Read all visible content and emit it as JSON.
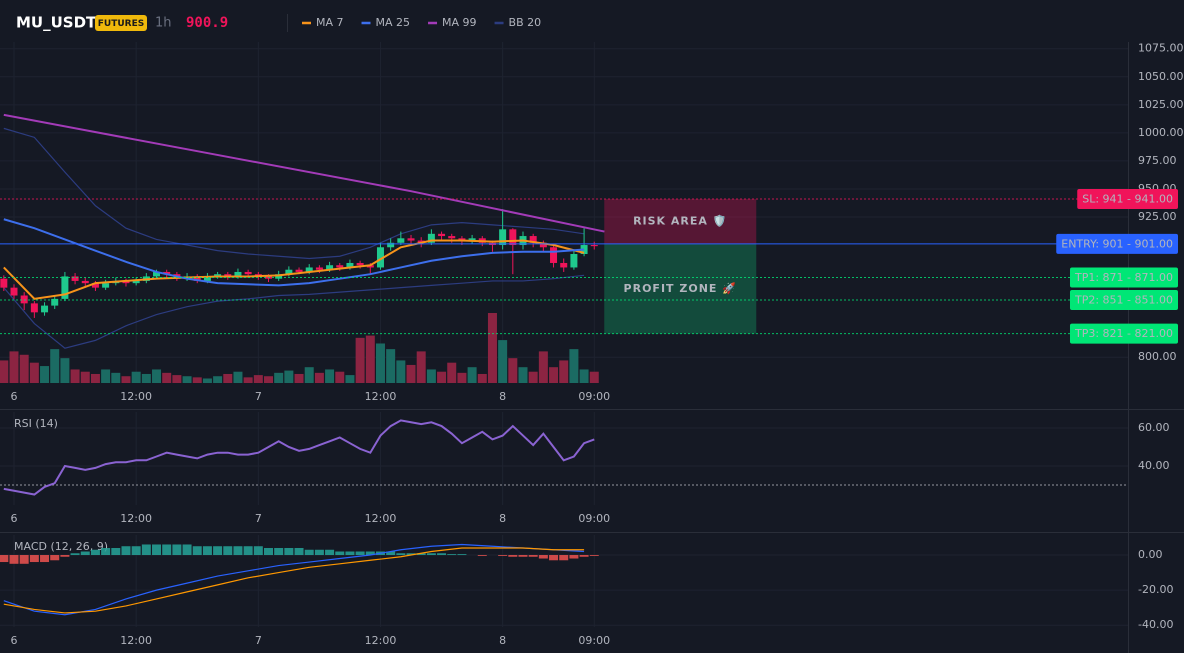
{
  "header": {
    "symbol": "MU_USDT",
    "badge": "FUTURES",
    "interval": "1h",
    "price": 900.9
  },
  "chart_data": [
    {
      "type": "candlestick",
      "x": [
        -1,
        0,
        1,
        2,
        3,
        4,
        5,
        6,
        7,
        8,
        9,
        10,
        11,
        12,
        13,
        14,
        15,
        16,
        17,
        18,
        19,
        20,
        21,
        22,
        23,
        24,
        25,
        26,
        27,
        28,
        29,
        30,
        31,
        32,
        33,
        34,
        35,
        36,
        37,
        38,
        39,
        40,
        41,
        42,
        43,
        44,
        45,
        46,
        47,
        48,
        49,
        50,
        51,
        52,
        53,
        54,
        55,
        56,
        57
      ],
      "open": [
        870,
        862,
        855,
        848,
        840,
        846,
        852,
        872,
        868,
        866,
        862,
        866,
        868,
        866,
        868,
        872,
        876,
        874,
        870,
        872,
        868,
        872,
        874,
        872,
        876,
        874,
        872,
        870,
        874,
        878,
        876,
        880,
        878,
        882,
        880,
        884,
        882,
        880,
        898,
        902,
        906,
        904,
        902,
        910,
        908,
        906,
        904,
        906,
        902,
        900,
        914,
        900,
        908,
        902,
        898,
        884,
        880,
        892,
        900
      ],
      "high": [
        873,
        865,
        858,
        850,
        849,
        855,
        876,
        875,
        871,
        868,
        869,
        871,
        870,
        871,
        875,
        878,
        878,
        876,
        875,
        874,
        875,
        876,
        876,
        879,
        878,
        876,
        874,
        877,
        881,
        880,
        883,
        882,
        885,
        884,
        887,
        886,
        884,
        902,
        906,
        912,
        909,
        907,
        914,
        912,
        910,
        908,
        909,
        908,
        904,
        932,
        915,
        912,
        910,
        904,
        900,
        888,
        896,
        915,
        903
      ],
      "low": [
        859,
        852,
        842,
        835,
        837,
        843,
        850,
        865,
        862,
        859,
        860,
        864,
        863,
        864,
        866,
        870,
        871,
        868,
        868,
        866,
        866,
        870,
        869,
        870,
        871,
        869,
        867,
        868,
        872,
        874,
        874,
        875,
        876,
        877,
        878,
        879,
        874,
        878,
        895,
        900,
        900,
        898,
        900,
        904,
        902,
        900,
        901,
        899,
        894,
        896,
        874,
        896,
        898,
        894,
        880,
        876,
        878,
        890,
        896
      ],
      "close": [
        862,
        855,
        848,
        840,
        846,
        852,
        872,
        868,
        866,
        862,
        866,
        868,
        866,
        868,
        872,
        876,
        874,
        870,
        872,
        868,
        872,
        874,
        872,
        876,
        874,
        872,
        870,
        874,
        878,
        876,
        880,
        878,
        882,
        880,
        884,
        882,
        880,
        898,
        902,
        906,
        904,
        902,
        910,
        908,
        906,
        904,
        906,
        902,
        900,
        914,
        900,
        908,
        902,
        898,
        884,
        880,
        892,
        900,
        899
      ],
      "volume": [
        20,
        28,
        25,
        18,
        15,
        30,
        22,
        12,
        10,
        8,
        12,
        9,
        6,
        10,
        8,
        12,
        9,
        7,
        6,
        5,
        4,
        6,
        8,
        10,
        5,
        7,
        6,
        9,
        11,
        8,
        14,
        9,
        12,
        10,
        7,
        40,
        42,
        35,
        30,
        20,
        16,
        28,
        12,
        10,
        18,
        9,
        14,
        8,
        62,
        38,
        22,
        14,
        10,
        28,
        14,
        20,
        30,
        12,
        10
      ],
      "up_color": "#1fc98d",
      "down_color": "#f0145a",
      "volume_up_color": "#1b6b63",
      "volume_down_color": "#8c2442",
      "lines": [
        {
          "name": "MA 7",
          "color": "#f7931a",
          "x": [
            -1,
            2,
            5,
            8,
            11,
            14,
            17,
            20,
            23,
            26,
            29,
            32,
            35,
            38,
            41,
            44,
            47,
            50,
            53,
            56
          ],
          "values": [
            880,
            852,
            856,
            866,
            868,
            870,
            871,
            872,
            872,
            873,
            876,
            879,
            882,
            898,
            904,
            904,
            903,
            904,
            900,
            893
          ]
        },
        {
          "name": "MA 25",
          "color": "#3d6fec",
          "x": [
            -1,
            2,
            5,
            8,
            11,
            14,
            17,
            20,
            23,
            26,
            29,
            32,
            35,
            38,
            41,
            44,
            47,
            50,
            53,
            56
          ],
          "values": [
            923,
            915,
            905,
            895,
            885,
            876,
            870,
            866,
            865,
            864,
            866,
            870,
            874,
            880,
            886,
            890,
            893,
            894,
            894,
            896
          ]
        },
        {
          "name": "MA 99",
          "color": "#a33bb8",
          "x": [
            -1,
            19,
            39,
            58
          ],
          "values": [
            1016,
            982,
            948,
            912
          ]
        },
        {
          "name": "BB 20",
          "color": "#2c3c80",
          "x": [
            -1,
            2,
            5,
            8,
            11,
            14,
            17,
            20,
            23,
            26,
            29,
            32,
            35,
            38,
            41,
            44,
            47,
            50,
            53,
            56
          ],
          "upper": [
            1004,
            996,
            965,
            935,
            915,
            905,
            900,
            895,
            892,
            890,
            888,
            890,
            898,
            910,
            918,
            920,
            918,
            916,
            914,
            910
          ],
          "lower": [
            862,
            830,
            808,
            815,
            828,
            838,
            845,
            850,
            852,
            855,
            856,
            858,
            860,
            862,
            864,
            866,
            868,
            868,
            870,
            873
          ]
        }
      ],
      "levels": [
        {
          "label": "SL: 941 - 941.00",
          "value": 941,
          "color": "#f0145a",
          "style": "dotted"
        },
        {
          "label": "ENTRY: 901 - 901.00",
          "value": 901,
          "color": "#2962ff",
          "style": "solid"
        },
        {
          "label": "TP1: 871 - 871.00",
          "value": 871,
          "color": "#00e676",
          "style": "dotted"
        },
        {
          "label": "TP2: 851 - 851.00",
          "value": 851,
          "color": "#00e676",
          "style": "dotted"
        },
        {
          "label": "TP3: 821 - 821.00",
          "value": 821,
          "color": "#00e676",
          "style": "dotted"
        }
      ],
      "zones": [
        {
          "label": "RISK AREA 🛡️",
          "from": 941,
          "to": 901,
          "color": "#f0145a",
          "text_color": "#f0145a"
        },
        {
          "label": "PROFIT ZONE 🚀",
          "from": 901,
          "to": 821,
          "color": "#0fbf75",
          "text_color": "#1fe08f"
        }
      ],
      "xlim": [
        -1.375,
        109.43
      ],
      "ylim": [
        777,
        1081
      ],
      "xticks": [
        {
          "value": 0,
          "label": "6"
        },
        {
          "value": 12,
          "label": "12:00"
        },
        {
          "value": 24,
          "label": "7"
        },
        {
          "value": 36,
          "label": "12:00"
        },
        {
          "value": 48,
          "label": "8"
        },
        {
          "value": 57,
          "label": "09:00"
        }
      ],
      "yticks": [
        {
          "value": 1075,
          "label": "1075.00"
        },
        {
          "value": 1050,
          "label": "1050.00"
        },
        {
          "value": 1025,
          "label": "1025.00"
        },
        {
          "value": 1000,
          "label": "1000.00"
        },
        {
          "value": 975,
          "label": "975.00"
        },
        {
          "value": 950,
          "label": "950.00"
        },
        {
          "value": 925,
          "label": "925.00"
        },
        {
          "value": 800,
          "label": "800.00"
        }
      ],
      "grid": true
    },
    {
      "type": "line",
      "title": "RSI (14)",
      "x": [
        -1,
        0,
        1,
        2,
        3,
        4,
        5,
        6,
        7,
        8,
        9,
        10,
        11,
        12,
        13,
        14,
        15,
        16,
        17,
        18,
        19,
        20,
        21,
        22,
        23,
        24,
        25,
        26,
        27,
        28,
        29,
        30,
        31,
        32,
        33,
        34,
        35,
        36,
        37,
        38,
        39,
        40,
        41,
        42,
        43,
        44,
        45,
        46,
        47,
        48,
        49,
        50,
        51,
        52,
        53,
        54,
        55,
        56,
        57
      ],
      "series": [
        {
          "color": "#8a63d2",
          "values": [
            28,
            27,
            26,
            25,
            29,
            31,
            40,
            39,
            38,
            39,
            41,
            42,
            42,
            43,
            43,
            45,
            47,
            46,
            45,
            44,
            46,
            47,
            47,
            46,
            46,
            47,
            50,
            53,
            50,
            48,
            49,
            51,
            53,
            55,
            52,
            49,
            47,
            56,
            61,
            64,
            63,
            62,
            63,
            61,
            57,
            52,
            55,
            58,
            54,
            56,
            61,
            56,
            51,
            57,
            50,
            43,
            45,
            52,
            54
          ]
        }
      ],
      "guide_lines": [
        30
      ],
      "xlim": [
        -1.375,
        109.43
      ],
      "ylim": [
        19.5,
        68.4
      ],
      "xticks": [
        {
          "value": 0,
          "label": "6"
        },
        {
          "value": 12,
          "label": "12:00"
        },
        {
          "value": 24,
          "label": "7"
        },
        {
          "value": 36,
          "label": "12:00"
        },
        {
          "value": 48,
          "label": "8"
        },
        {
          "value": 57,
          "label": "09:00"
        }
      ],
      "yticks": [
        {
          "value": 40,
          "label": "40.00"
        },
        {
          "value": 60,
          "label": "60.00"
        }
      ],
      "grid": true
    },
    {
      "type": "macd",
      "title": "MACD (12, 26, 9)",
      "x": [
        -1,
        0,
        1,
        2,
        3,
        4,
        5,
        6,
        7,
        8,
        9,
        10,
        11,
        12,
        13,
        14,
        15,
        16,
        17,
        18,
        19,
        20,
        21,
        22,
        23,
        24,
        25,
        26,
        27,
        28,
        29,
        30,
        31,
        32,
        33,
        34,
        35,
        36,
        37,
        38,
        39,
        40,
        41,
        42,
        43,
        44,
        45,
        46,
        47,
        48,
        49,
        50,
        51,
        52,
        53,
        54,
        55,
        56,
        57
      ],
      "histogram": [
        -4,
        -5,
        -5,
        -4,
        -4,
        -3,
        -1,
        1,
        2,
        3,
        4,
        4,
        5,
        5,
        6,
        6,
        6,
        6,
        6,
        5,
        5,
        5,
        5,
        5,
        5,
        5,
        4,
        4,
        4,
        4,
        3,
        3,
        3,
        2,
        2,
        2,
        2,
        2,
        2,
        1,
        1,
        1,
        1,
        1,
        0.5,
        0.5,
        0,
        -0.5,
        0,
        -0.5,
        -1,
        -1,
        -1,
        -2,
        -3,
        -3,
        -2,
        -1,
        -0.5
      ],
      "up_color": "#26a69a",
      "down_color": "#ef5350",
      "series": [
        {
          "color": "#2962ff",
          "x": [
            -1,
            2,
            5,
            8,
            11,
            14,
            17,
            20,
            23,
            26,
            29,
            32,
            35,
            38,
            41,
            44,
            47,
            50,
            53,
            56
          ],
          "values": [
            -26,
            -32,
            -34,
            -31,
            -25,
            -20,
            -16,
            -12,
            -9,
            -6,
            -4,
            -2,
            0,
            3,
            5,
            6,
            5,
            4,
            3,
            2
          ]
        },
        {
          "color": "#ff9800",
          "x": [
            -1,
            2,
            5,
            8,
            11,
            14,
            17,
            20,
            23,
            26,
            29,
            32,
            35,
            38,
            41,
            44,
            47,
            50,
            53,
            56
          ],
          "values": [
            -28,
            -31,
            -33,
            -32,
            -29,
            -25,
            -21,
            -17,
            -13,
            -10,
            -7,
            -5,
            -3,
            -1,
            2,
            4,
            4,
            4,
            3,
            3
          ]
        }
      ],
      "xlim": [
        -1.375,
        109.43
      ],
      "ylim": [
        -41,
        11.4
      ],
      "xticks": [
        {
          "value": 0,
          "label": "6"
        },
        {
          "value": 12,
          "label": "12:00"
        },
        {
          "value": 24,
          "label": "7"
        },
        {
          "value": 36,
          "label": "12:00"
        },
        {
          "value": 48,
          "label": "8"
        },
        {
          "value": 57,
          "label": "09:00"
        }
      ],
      "yticks": [
        {
          "value": 0,
          "label": "0.00"
        },
        {
          "value": -20,
          "label": "-20.00"
        },
        {
          "value": -40,
          "label": "-40.00"
        }
      ],
      "grid": true
    }
  ]
}
